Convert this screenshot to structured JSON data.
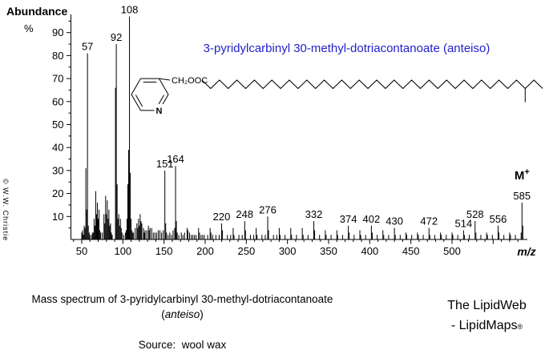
{
  "chart": {
    "ylabel_line1": "Abundance",
    "ylabel_line2": "%",
    "title": "3-pyridylcarbinyl 30-methyl-dotriacontanoate  (anteiso)",
    "title_color": "#2222cc",
    "watermark": "© W.W. Christie"
  },
  "molecule": {
    "ester_label": "CH₂OOC",
    "nitrogen_label": "N",
    "chain_segments": 39,
    "methyl_branch_vertex": 37
  },
  "chart_data": {
    "type": "bar",
    "title": "3-pyridylcarbinyl 30-methyl-dotriacontanoate  (anteiso)",
    "xlabel": "m/z",
    "ylabel": "Abundance %",
    "xlim": [
      40,
      590
    ],
    "ylim": [
      0,
      100
    ],
    "grid": false,
    "x_tick_labels": [
      50,
      100,
      150,
      200,
      250,
      300,
      350,
      400,
      450,
      500
    ],
    "x_major_ticks": [
      50,
      100,
      150,
      200,
      250,
      300,
      350,
      400,
      450,
      500,
      550
    ],
    "x_minor_step": 10,
    "y_tick_labels": [
      10,
      20,
      30,
      40,
      50,
      60,
      70,
      80,
      90
    ],
    "y_minor_step": 5,
    "molecular_ion": {
      "label": "M",
      "sup": "+",
      "mz": 585
    },
    "peak_labels": [
      57,
      92,
      108,
      151,
      164,
      220,
      248,
      276,
      332,
      374,
      402,
      430,
      472,
      514,
      528,
      556,
      585
    ],
    "peaks": [
      [
        50,
        3
      ],
      [
        51,
        4
      ],
      [
        52,
        2
      ],
      [
        53,
        6
      ],
      [
        54,
        5
      ],
      [
        55,
        31
      ],
      [
        56,
        13
      ],
      [
        57,
        81
      ],
      [
        58,
        6
      ],
      [
        59,
        3
      ],
      [
        60,
        2
      ],
      [
        62,
        2
      ],
      [
        63,
        3
      ],
      [
        64,
        3
      ],
      [
        65,
        9
      ],
      [
        66,
        6
      ],
      [
        67,
        21
      ],
      [
        68,
        11
      ],
      [
        69,
        16
      ],
      [
        70,
        9
      ],
      [
        71,
        13
      ],
      [
        72,
        4
      ],
      [
        73,
        3
      ],
      [
        75,
        3
      ],
      [
        77,
        11
      ],
      [
        78,
        7
      ],
      [
        79,
        19
      ],
      [
        80,
        11
      ],
      [
        81,
        17
      ],
      [
        82,
        9
      ],
      [
        83,
        13
      ],
      [
        84,
        6
      ],
      [
        85,
        7
      ],
      [
        86,
        3
      ],
      [
        87,
        2
      ],
      [
        91,
        66
      ],
      [
        92,
        85
      ],
      [
        93,
        24
      ],
      [
        94,
        9
      ],
      [
        95,
        11
      ],
      [
        96,
        6
      ],
      [
        97,
        9
      ],
      [
        98,
        5
      ],
      [
        99,
        3
      ],
      [
        101,
        2
      ],
      [
        103,
        3
      ],
      [
        104,
        4
      ],
      [
        105,
        9
      ],
      [
        106,
        24
      ],
      [
        107,
        39
      ],
      [
        108,
        97
      ],
      [
        109,
        29
      ],
      [
        110,
        9
      ],
      [
        111,
        4
      ],
      [
        112,
        3
      ],
      [
        113,
        3
      ],
      [
        115,
        5
      ],
      [
        117,
        7
      ],
      [
        118,
        5
      ],
      [
        119,
        9
      ],
      [
        120,
        6
      ],
      [
        121,
        11
      ],
      [
        122,
        8
      ],
      [
        123,
        7
      ],
      [
        125,
        5
      ],
      [
        126,
        3
      ],
      [
        127,
        4
      ],
      [
        129,
        4
      ],
      [
        131,
        6
      ],
      [
        132,
        4
      ],
      [
        133,
        5
      ],
      [
        135,
        5
      ],
      [
        137,
        3
      ],
      [
        139,
        3
      ],
      [
        141,
        3
      ],
      [
        143,
        4
      ],
      [
        145,
        4
      ],
      [
        147,
        3
      ],
      [
        149,
        4
      ],
      [
        151,
        30
      ],
      [
        152,
        7
      ],
      [
        153,
        3
      ],
      [
        155,
        2
      ],
      [
        157,
        3
      ],
      [
        159,
        2
      ],
      [
        161,
        4
      ],
      [
        163,
        5
      ],
      [
        164,
        32
      ],
      [
        165,
        8
      ],
      [
        166,
        3
      ],
      [
        168,
        2
      ],
      [
        171,
        3
      ],
      [
        173,
        2
      ],
      [
        175,
        3
      ],
      [
        178,
        5
      ],
      [
        179,
        4
      ],
      [
        181,
        3
      ],
      [
        183,
        2
      ],
      [
        185,
        2
      ],
      [
        187,
        2
      ],
      [
        189,
        2
      ],
      [
        192,
        5
      ],
      [
        193,
        3
      ],
      [
        195,
        2
      ],
      [
        197,
        2
      ],
      [
        199,
        2
      ],
      [
        203,
        2
      ],
      [
        206,
        5
      ],
      [
        207,
        3
      ],
      [
        209,
        2
      ],
      [
        213,
        2
      ],
      [
        217,
        2
      ],
      [
        220,
        7
      ],
      [
        221,
        4
      ],
      [
        227,
        2
      ],
      [
        231,
        2
      ],
      [
        234,
        5
      ],
      [
        235,
        2
      ],
      [
        241,
        2
      ],
      [
        245,
        2
      ],
      [
        248,
        8
      ],
      [
        249,
        4
      ],
      [
        255,
        2
      ],
      [
        259,
        2
      ],
      [
        262,
        5
      ],
      [
        263,
        2
      ],
      [
        269,
        2
      ],
      [
        273,
        2
      ],
      [
        276,
        10
      ],
      [
        277,
        4
      ],
      [
        283,
        2
      ],
      [
        287,
        2
      ],
      [
        290,
        5
      ],
      [
        291,
        2
      ],
      [
        297,
        2
      ],
      [
        304,
        5
      ],
      [
        305,
        2
      ],
      [
        311,
        2
      ],
      [
        318,
        5
      ],
      [
        319,
        2
      ],
      [
        325,
        2
      ],
      [
        332,
        8
      ],
      [
        333,
        4
      ],
      [
        339,
        2
      ],
      [
        346,
        4
      ],
      [
        347,
        2
      ],
      [
        353,
        2
      ],
      [
        360,
        4
      ],
      [
        361,
        2
      ],
      [
        367,
        2
      ],
      [
        374,
        6
      ],
      [
        375,
        3
      ],
      [
        381,
        2
      ],
      [
        388,
        4
      ],
      [
        389,
        2
      ],
      [
        395,
        2
      ],
      [
        402,
        6
      ],
      [
        403,
        3
      ],
      [
        409,
        2
      ],
      [
        416,
        4
      ],
      [
        417,
        2
      ],
      [
        423,
        2
      ],
      [
        430,
        5
      ],
      [
        431,
        2
      ],
      [
        437,
        2
      ],
      [
        444,
        3
      ],
      [
        445,
        2
      ],
      [
        451,
        2
      ],
      [
        458,
        3
      ],
      [
        459,
        2
      ],
      [
        465,
        2
      ],
      [
        472,
        5
      ],
      [
        473,
        2
      ],
      [
        479,
        2
      ],
      [
        486,
        3
      ],
      [
        487,
        2
      ],
      [
        493,
        2
      ],
      [
        500,
        3
      ],
      [
        501,
        2
      ],
      [
        507,
        2
      ],
      [
        514,
        4
      ],
      [
        515,
        2
      ],
      [
        521,
        2
      ],
      [
        528,
        8
      ],
      [
        529,
        3
      ],
      [
        535,
        2
      ],
      [
        542,
        3
      ],
      [
        543,
        2
      ],
      [
        549,
        2
      ],
      [
        556,
        6
      ],
      [
        557,
        3
      ],
      [
        563,
        2
      ],
      [
        570,
        3
      ],
      [
        571,
        2
      ],
      [
        577,
        2
      ],
      [
        584,
        3
      ],
      [
        585,
        16
      ],
      [
        586,
        6
      ]
    ]
  },
  "footer": {
    "caption_line1": "Mass spectrum of 3-pyridylcarbinyl 30-methyl-dotriacontanoate",
    "paren_open": "(",
    "caption_italic": "anteiso",
    "paren_close": ")",
    "source": "Source:  wool wax",
    "brand_line1": "The LipidWeb",
    "brand_line2": "- LipidMaps",
    "brand_reg": "®"
  }
}
